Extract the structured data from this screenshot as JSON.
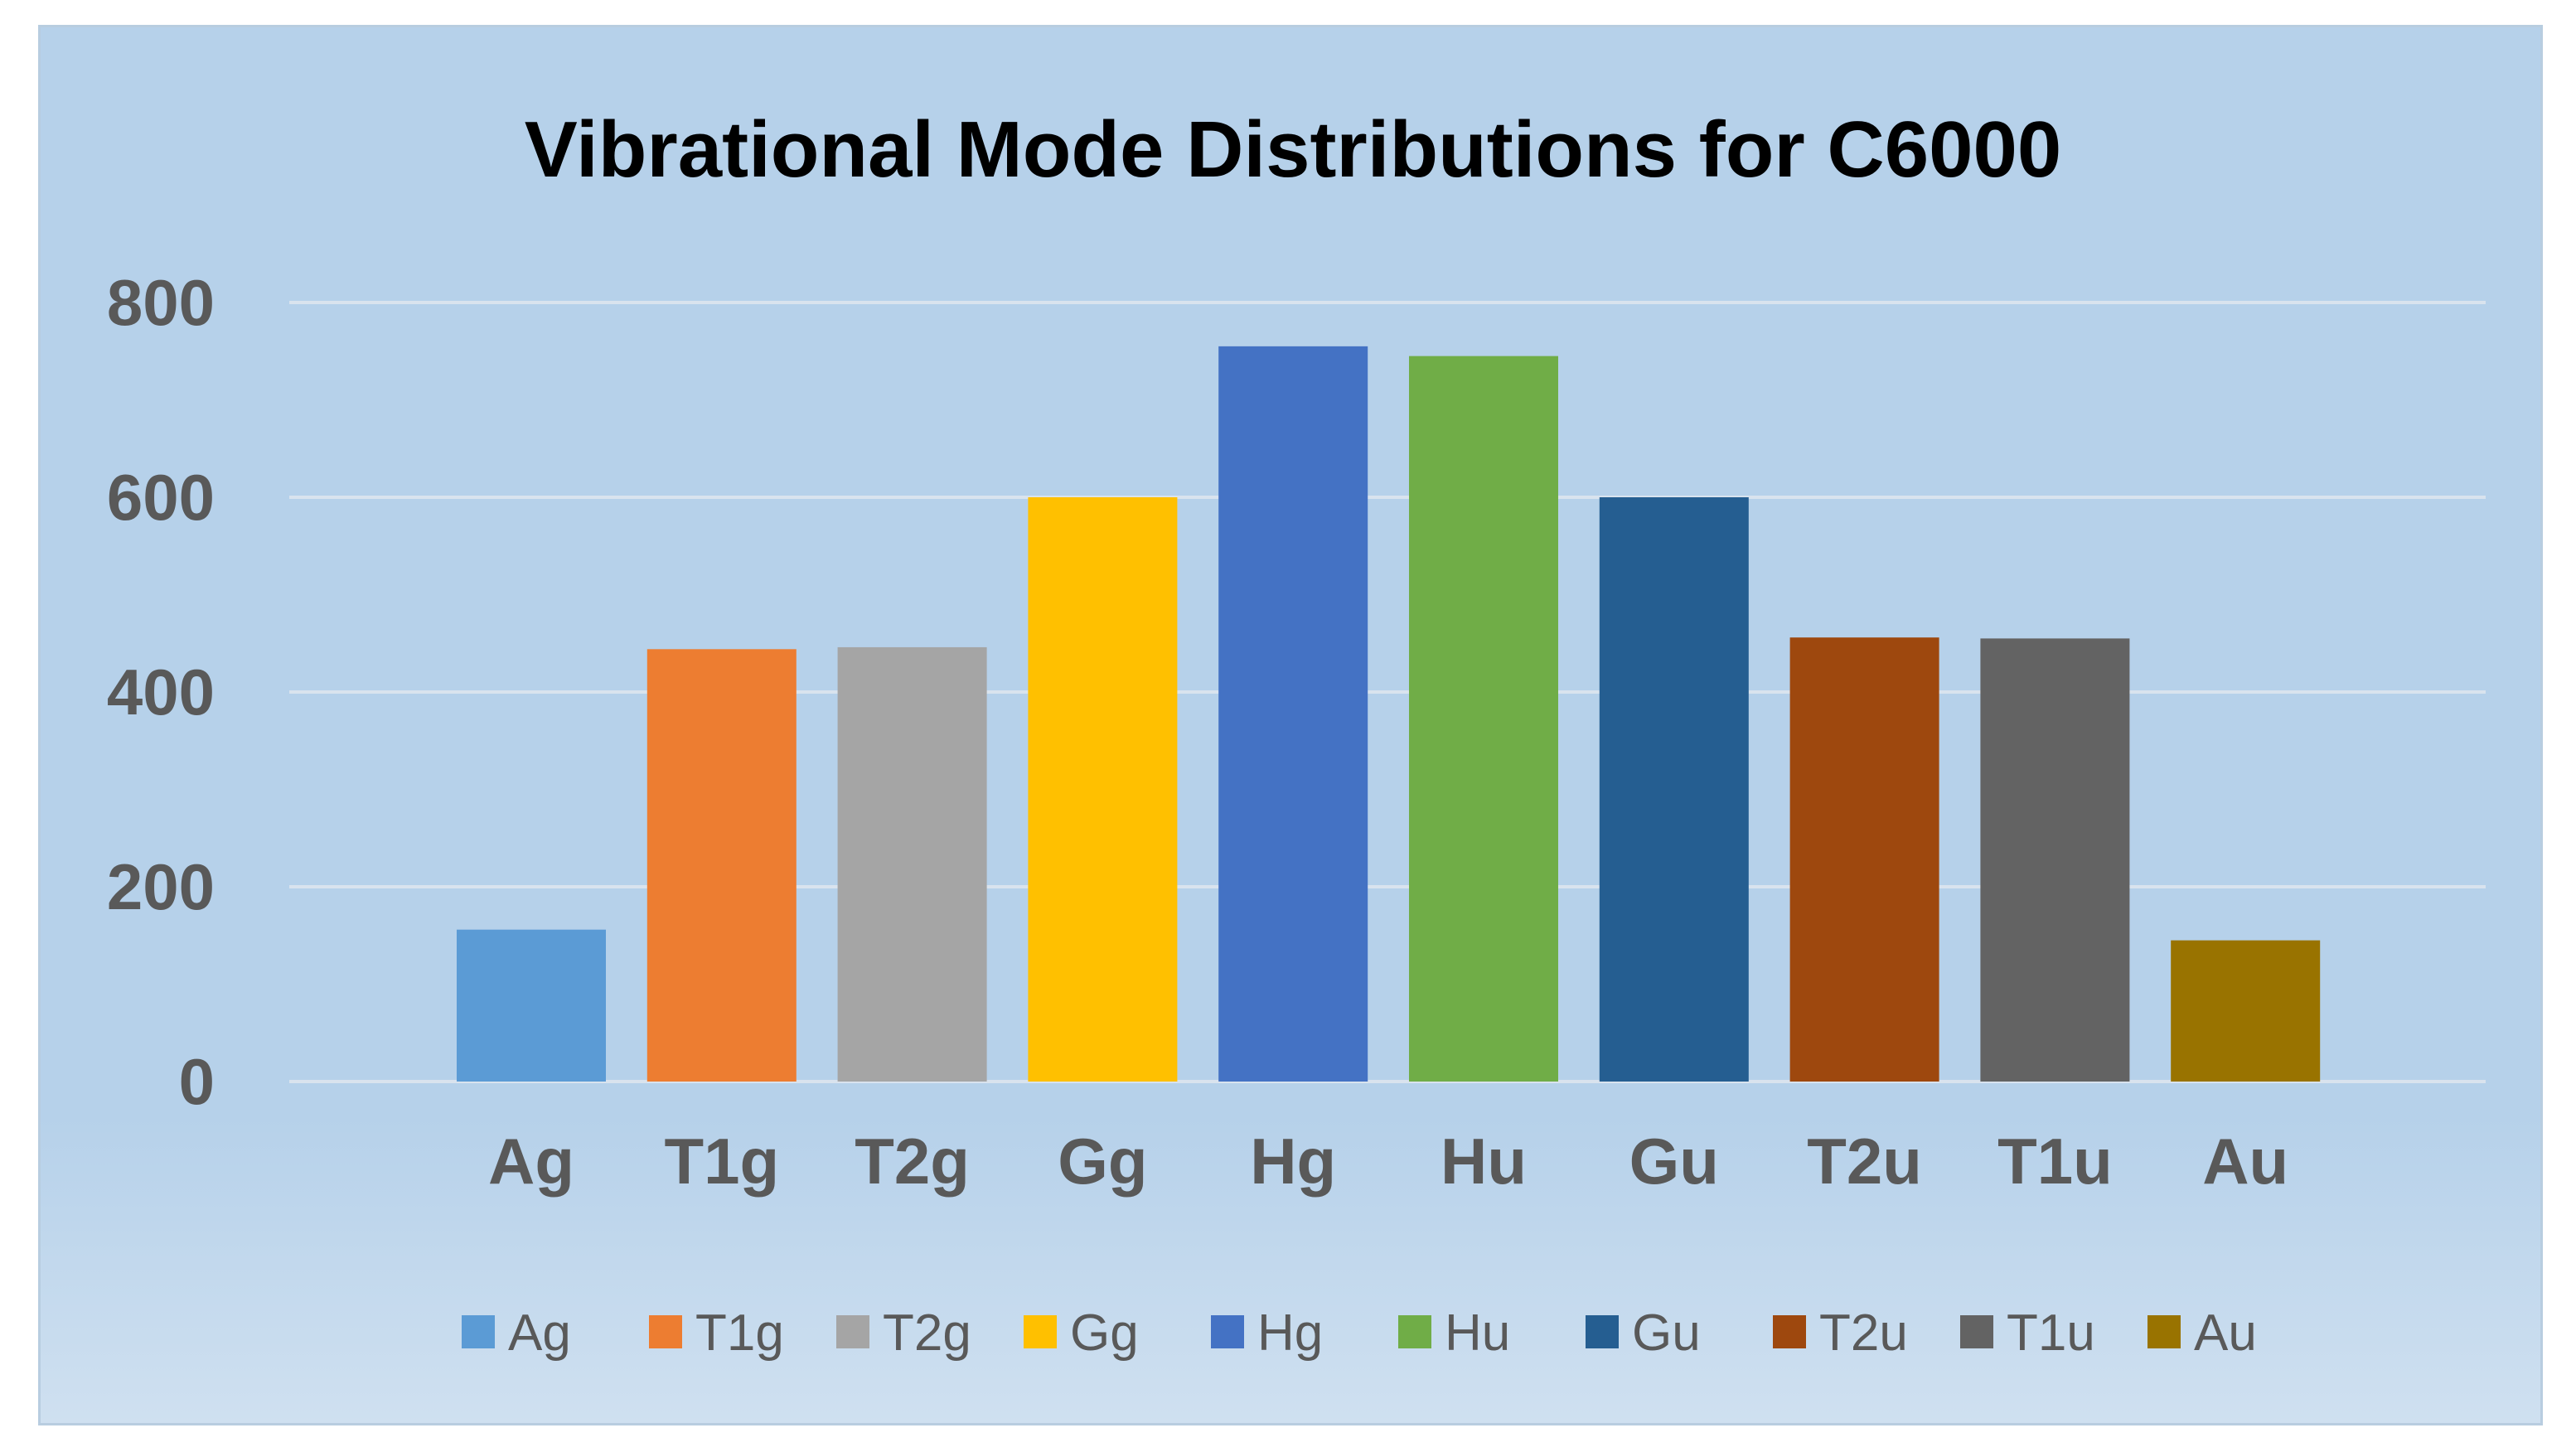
{
  "chart_data": {
    "type": "bar",
    "title": "Vibrational Mode Distributions for C6000",
    "categories": [
      "Ag",
      "T1g",
      "T2g",
      "Gg",
      "Hg",
      "Hu",
      "Gu",
      "T2u",
      "T1u",
      "Au"
    ],
    "values": [
      156,
      444,
      446,
      600,
      755,
      745,
      600,
      456,
      455,
      145
    ],
    "colors": [
      "#5b9bd5",
      "#ed7d31",
      "#a5a5a5",
      "#ffc000",
      "#4472c4",
      "#70ad47",
      "#255e91",
      "#9e480e",
      "#636363",
      "#997300"
    ],
    "yticks": [
      "0",
      "200",
      "400",
      "600",
      "800"
    ],
    "ylim": [
      0,
      800
    ],
    "xlabel": "",
    "ylabel": "",
    "grid": true,
    "legend": {
      "position": "bottom",
      "entries": [
        "Ag",
        "T1g",
        "T2g",
        "Gg",
        "Hg",
        "Hu",
        "Gu",
        "T2u",
        "T1u",
        "Au"
      ]
    }
  }
}
